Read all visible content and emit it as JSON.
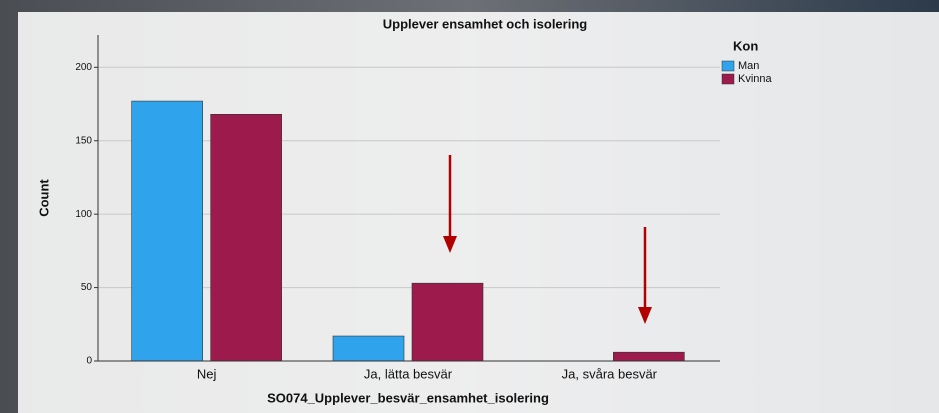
{
  "chart_data": {
    "type": "bar",
    "title": "Upplever ensamhet och isolering",
    "x_label": "SO074_Upplever_besvär_ensamhet_isolering",
    "y_label": "Count",
    "legend_title": "Kon",
    "legend_position": "upper right",
    "categories": [
      "Nej",
      "Ja, lätta besvär",
      "Ja, svåra besvär"
    ],
    "series": [
      {
        "name": "Man",
        "color": "#2fa3ec",
        "values": [
          177,
          17,
          0
        ]
      },
      {
        "name": "Kvinna",
        "color": "#9c1a4c",
        "values": [
          168,
          53,
          6
        ]
      }
    ],
    "ylim": [
      0,
      222
    ],
    "yticks": [
      0,
      50,
      100,
      150,
      200
    ],
    "grid": true
  }
}
